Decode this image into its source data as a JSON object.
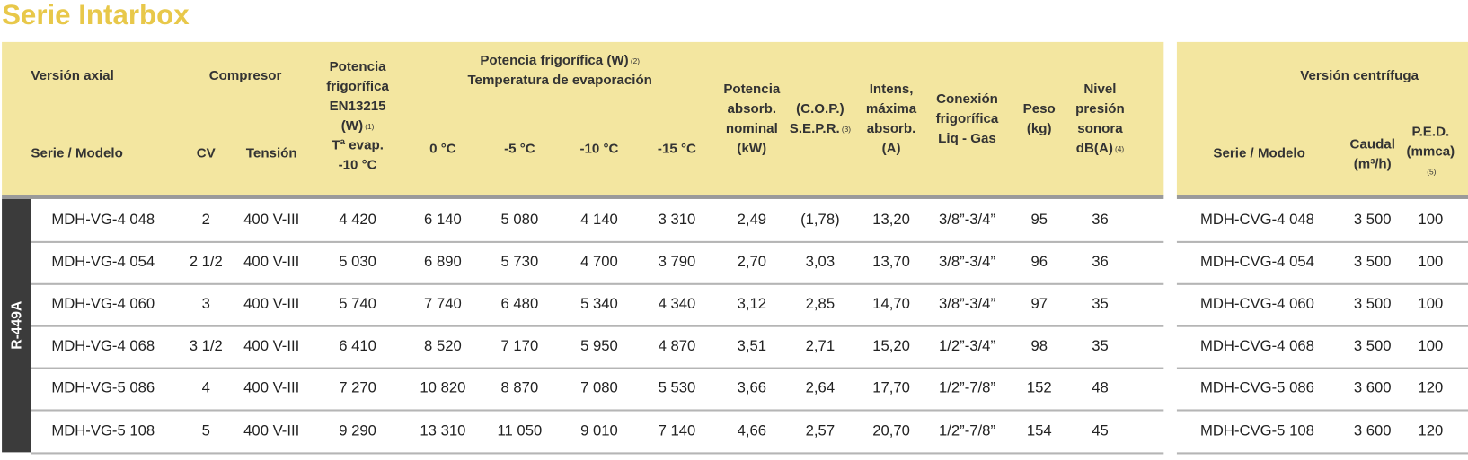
{
  "title": "Serie Intarbox",
  "refrigerant": "R-449A",
  "main_table": {
    "group_headers": [
      {
        "lines": [
          "Versión axial"
        ]
      },
      {
        "lines": [
          "Compresor"
        ]
      },
      {
        "lines": [
          {
            "text": "Potencia frigorífica (W)",
            "note": "(2)"
          },
          "Temperatura de evaporación"
        ]
      }
    ],
    "columns": [
      {
        "lines": [
          "Serie / Modelo"
        ]
      },
      {
        "lines": [
          "CV"
        ]
      },
      {
        "lines": [
          "Tensión"
        ]
      },
      {
        "lines": [
          "Potencia",
          "frigorífica",
          "EN13215",
          {
            "text": "(W)",
            "note": "(1)"
          },
          "Tª evap.",
          "-10 °C"
        ]
      },
      {
        "lines": [
          "0 °C"
        ]
      },
      {
        "lines": [
          "-5 °C"
        ]
      },
      {
        "lines": [
          "-10 °C"
        ]
      },
      {
        "lines": [
          "-15 °C"
        ]
      },
      {
        "lines": [
          "Potencia",
          "absorb.",
          "nominal",
          "(kW)"
        ]
      },
      {
        "lines": [
          "(C.O.P.)",
          {
            "text": "S.E.P.R.",
            "note": "(3)"
          }
        ]
      },
      {
        "lines": [
          "Intens,",
          "máxima",
          "absorb.",
          "(A)"
        ]
      },
      {
        "lines": [
          "Conexión",
          "frigorífica",
          "Liq - Gas"
        ]
      },
      {
        "lines": [
          "Peso",
          "(kg)"
        ]
      },
      {
        "lines": [
          "Nivel",
          "presión",
          "sonora",
          {
            "text": "dB(A)",
            "note": "(4)"
          }
        ]
      }
    ],
    "rows": [
      [
        "MDH-VG-4 048",
        "2",
        "400 V-III",
        "4 420",
        "6 140",
        "5 080",
        "4 140",
        "3 310",
        "2,49",
        "(1,78)",
        "13,20",
        "3/8”-3/4”",
        "95",
        "36"
      ],
      [
        "MDH-VG-4 054",
        "2 1/2",
        "400 V-III",
        "5 030",
        "6 890",
        "5 730",
        "4 700",
        "3 790",
        "2,70",
        "3,03",
        "13,70",
        "3/8”-3/4”",
        "96",
        "36"
      ],
      [
        "MDH-VG-4 060",
        "3",
        "400 V-III",
        "5 740",
        "7 740",
        "6 480",
        "5 340",
        "4 340",
        "3,12",
        "2,85",
        "14,70",
        "3/8”-3/4”",
        "97",
        "35"
      ],
      [
        "MDH-VG-4 068",
        "3 1/2",
        "400 V-III",
        "6 410",
        "8 520",
        "7 170",
        "5 950",
        "4 870",
        "3,51",
        "2,71",
        "15,20",
        "1/2”-3/4”",
        "98",
        "35"
      ],
      [
        "MDH-VG-5 086",
        "4",
        "400 V-III",
        "7 270",
        "10 820",
        "8 870",
        "7 080",
        "5 530",
        "3,66",
        "2,64",
        "17,70",
        "1/2”-7/8”",
        "152",
        "48"
      ],
      [
        "MDH-VG-5 108",
        "5",
        "400 V-III",
        "9 290",
        "13 310",
        "11 050",
        "9 010",
        "7 140",
        "4,66",
        "2,57",
        "20,70",
        "1/2”-7/8”",
        "154",
        "45"
      ]
    ]
  },
  "centrifugal_table": {
    "group_headers": [
      {
        "lines": [
          "Versión centrífuga"
        ]
      }
    ],
    "columns": [
      {
        "lines": [
          "Serie / Modelo"
        ]
      },
      {
        "lines": [
          "Caudal",
          "(m³/h)"
        ]
      },
      {
        "lines": [
          "P.E.D.",
          "(mmca)",
          {
            "note": "(5)"
          }
        ]
      }
    ],
    "rows": [
      [
        "MDH-CVG-4 048",
        "3 500",
        "100"
      ],
      [
        "MDH-CVG-4 054",
        "3 500",
        "100"
      ],
      [
        "MDH-CVG-4 060",
        "3 500",
        "100"
      ],
      [
        "MDH-CVG-4 068",
        "3 500",
        "100"
      ],
      [
        "MDH-CVG-5 086",
        "3 600",
        "120"
      ],
      [
        "MDH-CVG-5 108",
        "3 600",
        "120"
      ]
    ]
  }
}
